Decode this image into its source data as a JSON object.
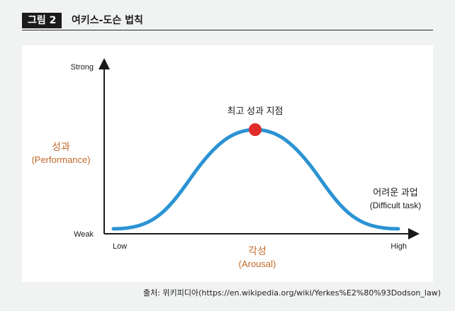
{
  "header": {
    "figure_label": "그림 2",
    "title": "여키스-도슨 법칙"
  },
  "diagram": {
    "y_axis": {
      "top_label": "Strong",
      "bottom_label": "Weak",
      "title_ko": "성과",
      "title_en": "(Performance)"
    },
    "x_axis": {
      "left_label": "Low",
      "right_label": "High",
      "title_ko": "각성",
      "title_en": "(Arousal)"
    },
    "peak_label": "최고 성과 지점",
    "difficult_label_ko": "어려운 과업",
    "difficult_label_en": "(Difficult task)",
    "colors": {
      "curve": "#2b93d3",
      "peak_marker": "#e02b2b",
      "accent_text": "#c0692b"
    }
  },
  "source": "출처: 위키피디아(https://en.wikipedia.org/wiki/Yerkes%E2%80%93Dodson_law)"
}
